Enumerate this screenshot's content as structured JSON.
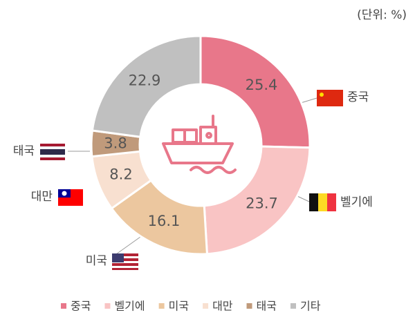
{
  "chart_data": {
    "type": "pie",
    "unit": "(단위: %)",
    "categories": [
      "중국",
      "벨기에",
      "미국",
      "대만",
      "태국",
      "기타"
    ],
    "values": [
      25.4,
      23.7,
      16.1,
      8.2,
      3.8,
      22.9
    ],
    "colors": [
      "#e8778a",
      "#f9c4c4",
      "#ecc79f",
      "#f8e0d0",
      "#c09a7b",
      "#c0c0c0"
    ]
  }
}
